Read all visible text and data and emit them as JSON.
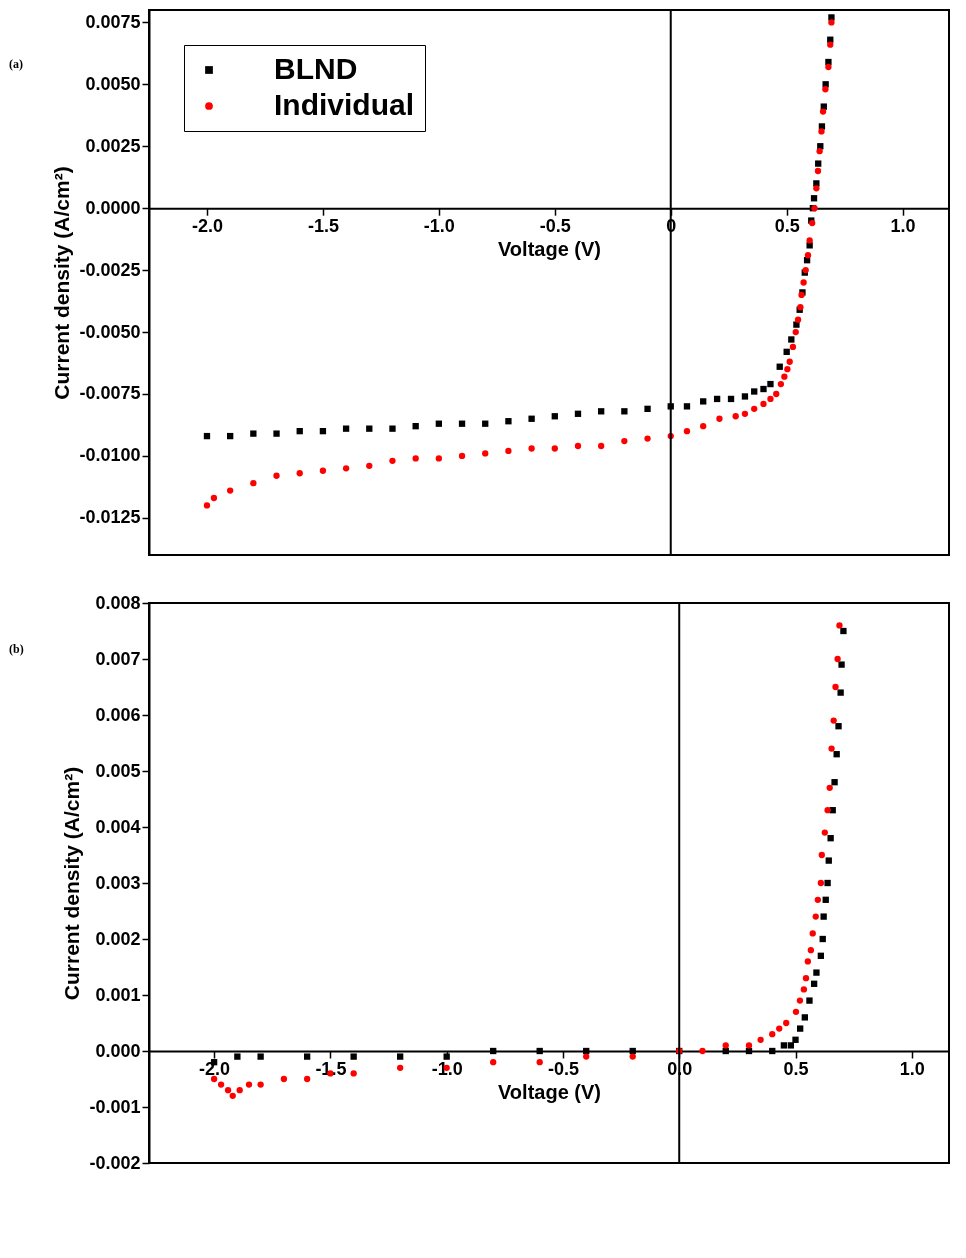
{
  "chart_data": [
    {
      "type": "scatter",
      "title": "(a)",
      "xlabel": "Voltage (V)",
      "ylabel": "Current density (A/cm²)",
      "legend": "top left",
      "grid": false,
      "xlim": [
        -2.25,
        1.2
      ],
      "ylim": [
        -0.014,
        0.008
      ],
      "xticks": [
        {
          "value": -2,
          "label": "-2.0"
        },
        {
          "value": -1.5,
          "label": "-1.5"
        },
        {
          "value": -1,
          "label": "-1.0"
        },
        {
          "value": -0.5,
          "label": "-0.5"
        },
        {
          "value": 0,
          "label": "0"
        },
        {
          "value": 0.5,
          "label": "0.5"
        },
        {
          "value": 1,
          "label": "1.0"
        }
      ],
      "yticks": [
        {
          "value": -0.0125,
          "label": "-0.0125"
        },
        {
          "value": -0.01,
          "label": "-0.0100"
        },
        {
          "value": -0.0075,
          "label": "-0.0075"
        },
        {
          "value": -0.005,
          "label": "-0.0050"
        },
        {
          "value": -0.0025,
          "label": "-0.0025"
        },
        {
          "value": 0,
          "label": "0.0000"
        },
        {
          "value": 0.0025,
          "label": "0.0025"
        },
        {
          "value": 0.005,
          "label": "0.0050"
        },
        {
          "value": 0.0075,
          "label": "0.0075"
        }
      ],
      "ref_lines": [
        {
          "axis": "x",
          "value": 0
        }
      ],
      "series": [
        {
          "name": "BLND",
          "color": "#000000",
          "marker": "square",
          "x": [
            -2.0,
            -1.9,
            -1.8,
            -1.7,
            -1.6,
            -1.5,
            -1.4,
            -1.3,
            -1.2,
            -1.1,
            -1.0,
            -0.9,
            -0.8,
            -0.7,
            -0.6,
            -0.5,
            -0.4,
            -0.3,
            -0.2,
            -0.1,
            0,
            0.07,
            0.14,
            0.2,
            0.26,
            0.32,
            0.36,
            0.4,
            0.43,
            0.47,
            0.5,
            0.52,
            0.542,
            0.556,
            0.568,
            0.578,
            0.588,
            0.599,
            0.606,
            0.613,
            0.618,
            0.628,
            0.636,
            0.645,
            0.652,
            0.66,
            0.668,
            0.68,
            0.688,
            0.693
          ],
          "values": [
            -0.0092,
            -0.0092,
            -0.0091,
            -0.0091,
            -0.009,
            -0.009,
            -0.0089,
            -0.0089,
            -0.0089,
            -0.0088,
            -0.0087,
            -0.0087,
            -0.0087,
            -0.0086,
            -0.0085,
            -0.0084,
            -0.0083,
            -0.0082,
            -0.0082,
            -0.0081,
            -0.008,
            -0.008,
            -0.0078,
            -0.0077,
            -0.0077,
            -0.0076,
            -0.0074,
            -0.0073,
            -0.0071,
            -0.0064,
            -0.0058,
            -0.0053,
            -0.0047,
            -0.0041,
            -0.0034,
            -0.0026,
            -0.0021,
            -0.0015,
            -0.0005,
            0,
            0.0004,
            0.001,
            0.0018,
            0.0025,
            0.0033,
            0.0041,
            0.005,
            0.0059,
            0.0068,
            0.0077
          ]
        },
        {
          "name": "Individual",
          "color": "#ff0000",
          "marker": "circle",
          "x": [
            -2.0,
            -1.97,
            -1.9,
            -1.8,
            -1.7,
            -1.6,
            -1.5,
            -1.4,
            -1.3,
            -1.2,
            -1.1,
            -1.0,
            -0.9,
            -0.8,
            -0.7,
            -0.6,
            -0.5,
            -0.4,
            -0.3,
            -0.2,
            -0.1,
            0,
            0.07,
            0.14,
            0.21,
            0.28,
            0.32,
            0.36,
            0.4,
            0.43,
            0.455,
            0.475,
            0.49,
            0.503,
            0.513,
            0.527,
            0.539,
            0.549,
            0.559,
            0.564,
            0.573,
            0.582,
            0.592,
            0.599,
            0.61,
            0.62,
            0.628,
            0.635,
            0.642,
            0.65,
            0.657,
            0.667,
            0.68,
            0.688,
            0.693
          ],
          "values": [
            -0.012,
            -0.0117,
            -0.0114,
            -0.0111,
            -0.0108,
            -0.0107,
            -0.0106,
            -0.0105,
            -0.0104,
            -0.0102,
            -0.0101,
            -0.0101,
            -0.01,
            -0.0099,
            -0.0098,
            -0.0097,
            -0.0097,
            -0.0096,
            -0.0096,
            -0.0094,
            -0.0093,
            -0.0092,
            -0.009,
            -0.0088,
            -0.0085,
            -0.0084,
            -0.0083,
            -0.0081,
            -0.0079,
            -0.0077,
            -0.0075,
            -0.0071,
            -0.0068,
            -0.0065,
            -0.0062,
            -0.0056,
            -0.005,
            -0.0045,
            -0.004,
            -0.0035,
            -0.003,
            -0.0025,
            -0.0019,
            -0.0013,
            -0.0006,
            0,
            0.0008,
            0.0015,
            0.0023,
            0.0031,
            0.0039,
            0.0048,
            0.0057,
            0.0066,
            0.0075
          ]
        }
      ]
    },
    {
      "type": "scatter",
      "title": "(b)",
      "xlabel": "Voltage (V)",
      "ylabel": "Current density (A/cm²)",
      "legend": "top left",
      "grid": false,
      "xlim": [
        -2.28,
        1.16
      ],
      "ylim": [
        -0.002,
        0.008
      ],
      "xticks": [
        {
          "value": -2,
          "label": "-2.0"
        },
        {
          "value": -1.5,
          "label": "-1.5"
        },
        {
          "value": -1,
          "label": "-1.0"
        },
        {
          "value": -0.5,
          "label": "-0.5"
        },
        {
          "value": 0,
          "label": "0.0"
        },
        {
          "value": 0.5,
          "label": "0.5"
        },
        {
          "value": 1,
          "label": "1.0"
        }
      ],
      "yticks": [
        -0.002,
        -0.001,
        {
          "value": 0,
          "label": "0.000"
        },
        0.001,
        0.002,
        0.003,
        0.004,
        0.005,
        0.006,
        0.007,
        0.008
      ],
      "ref_lines": [
        {
          "axis": "x",
          "value": 0
        }
      ],
      "series": [
        {
          "name": "BLND",
          "color": "#000000",
          "marker": "square",
          "x": [
            -2.0,
            -1.9,
            -1.8,
            -1.6,
            -1.4,
            -1.2,
            -1.0,
            -0.8,
            -0.6,
            -0.4,
            -0.2,
            0,
            0.2,
            0.3,
            0.4,
            0.45,
            0.48,
            0.5,
            0.52,
            0.54,
            0.56,
            0.58,
            0.59,
            0.609,
            0.617,
            0.621,
            0.63,
            0.638,
            0.643,
            0.651,
            0.66,
            0.668,
            0.677,
            0.685,
            0.694,
            0.698,
            0.706
          ],
          "values": [
            -0.0002,
            -0.0001,
            -0.0001,
            -0.0001,
            -0.0001,
            -0.0001,
            -0.0001,
            0,
            0,
            0,
            0,
            0,
            0,
            0,
            0,
            0.0001,
            0.0001,
            0.0002,
            0.0004,
            0.0006,
            0.0009,
            0.0012,
            0.0014,
            0.0017,
            0.002,
            0.0024,
            0.0027,
            0.003,
            0.0034,
            0.0038,
            0.0043,
            0.0048,
            0.0053,
            0.0058,
            0.0064,
            0.0069,
            0.0075
          ]
        },
        {
          "name": "Individual",
          "color": "#ff0000",
          "marker": "circle",
          "x": [
            -2.0,
            -1.97,
            -1.94,
            -1.92,
            -1.89,
            -1.85,
            -1.8,
            -1.7,
            -1.6,
            -1.5,
            -1.4,
            -1.2,
            -1.0,
            -0.8,
            -0.6,
            -0.4,
            -0.2,
            0,
            0.1,
            0.2,
            0.3,
            0.35,
            0.4,
            0.43,
            0.46,
            0.502,
            0.519,
            0.536,
            0.545,
            0.553,
            0.566,
            0.574,
            0.587,
            0.596,
            0.609,
            0.613,
            0.626,
            0.638,
            0.647,
            0.655,
            0.664,
            0.672,
            0.681,
            0.689
          ],
          "values": [
            -0.0005,
            -0.0006,
            -0.0007,
            -0.0008,
            -0.0007,
            -0.0006,
            -0.0006,
            -0.0005,
            -0.0005,
            -0.0004,
            -0.0004,
            -0.0003,
            -0.0003,
            -0.0002,
            -0.0002,
            -0.0001,
            -0.0001,
            0,
            0,
            0.0001,
            0.0001,
            0.0002,
            0.0003,
            0.0004,
            0.0005,
            0.0007,
            0.0009,
            0.0011,
            0.0013,
            0.0016,
            0.0018,
            0.0021,
            0.0024,
            0.0027,
            0.003,
            0.0035,
            0.0039,
            0.0043,
            0.0047,
            0.0054,
            0.0059,
            0.0065,
            0.007,
            0.0076
          ]
        }
      ]
    }
  ]
}
